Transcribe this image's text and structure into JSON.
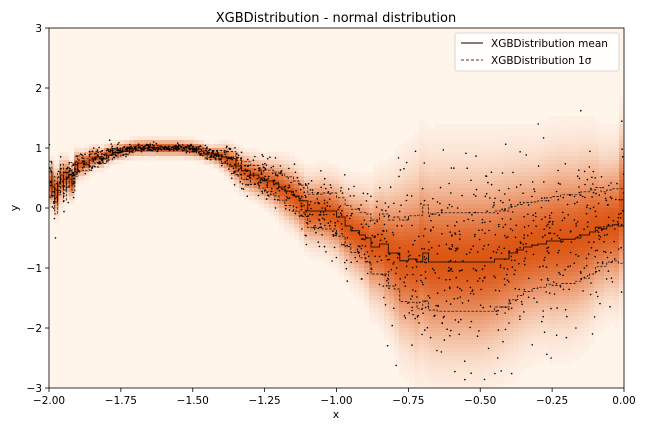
{
  "chart_data": {
    "type": "scatter",
    "title": "XGBDistribution - normal distribution",
    "xlabel": "x",
    "ylabel": "y",
    "xlim": [
      -2.0,
      0.0
    ],
    "ylim": [
      -3,
      3
    ],
    "xticks": [
      -2.0,
      -1.75,
      -1.5,
      -1.25,
      -1.0,
      -0.75,
      -0.5,
      -0.25,
      0.0
    ],
    "xtick_labels": [
      "−2.00",
      "−1.75",
      "−1.50",
      "−1.25",
      "−1.00",
      "−0.75",
      "−0.50",
      "−0.25",
      "0.00"
    ],
    "yticks": [
      -3,
      -2,
      -1,
      0,
      1,
      2,
      3
    ],
    "ytick_labels": [
      "−3",
      "−2",
      "−1",
      "0",
      "1",
      "2",
      "3"
    ],
    "grid": false,
    "legend_position": "top-right",
    "legend": [
      {
        "label": "XGBDistribution mean",
        "style": "solid"
      },
      {
        "label": "XGBDistribution 1σ",
        "style": "dashed"
      }
    ],
    "colormap": "Oranges",
    "background_color": "#fff5eb",
    "peak_color": "#d94801",
    "mean_curve": {
      "x": [
        -2.0,
        -1.99,
        -1.98,
        -1.97,
        -1.96,
        -1.95,
        -1.94,
        -1.93,
        -1.92,
        -1.91,
        -1.9,
        -1.88,
        -1.86,
        -1.84,
        -1.82,
        -1.8,
        -1.78,
        -1.75,
        -1.72,
        -1.7,
        -1.68,
        -1.65,
        -1.62,
        -1.6,
        -1.55,
        -1.5,
        -1.47,
        -1.45,
        -1.42,
        -1.4,
        -1.38,
        -1.35,
        -1.33,
        -1.3,
        -1.27,
        -1.25,
        -1.22,
        -1.2,
        -1.18,
        -1.15,
        -1.13,
        -1.1,
        -1.05,
        -1.0,
        -0.97,
        -0.95,
        -0.92,
        -0.9,
        -0.88,
        -0.85,
        -0.82,
        -0.8,
        -0.78,
        -0.75,
        -0.72,
        -0.7,
        -0.68,
        -0.65,
        -0.6,
        -0.55,
        -0.5,
        -0.45,
        -0.4,
        -0.37,
        -0.35,
        -0.32,
        -0.3,
        -0.27,
        -0.25,
        -0.22,
        -0.2,
        -0.17,
        -0.15,
        -0.12,
        -0.1,
        -0.08,
        -0.06,
        -0.04,
        -0.02,
        0.0
      ],
      "y": [
        0.6,
        0.35,
        0.1,
        0.4,
        0.55,
        0.3,
        0.5,
        0.62,
        0.4,
        0.65,
        0.75,
        0.72,
        0.8,
        0.85,
        0.82,
        0.88,
        0.92,
        0.95,
        0.98,
        1.0,
        1.0,
        1.01,
        1.0,
        1.0,
        1.0,
        0.98,
        0.95,
        0.9,
        0.88,
        0.85,
        0.82,
        0.7,
        0.62,
        0.55,
        0.5,
        0.45,
        0.4,
        0.35,
        0.28,
        0.2,
        0.12,
        -0.05,
        -0.05,
        -0.15,
        -0.3,
        -0.38,
        -0.45,
        -0.5,
        -0.65,
        -0.6,
        -0.75,
        -0.75,
        -0.88,
        -0.85,
        -0.9,
        -0.75,
        -0.9,
        -0.9,
        -0.9,
        -0.9,
        -0.9,
        -0.85,
        -0.75,
        -0.7,
        -0.65,
        -0.62,
        -0.6,
        -0.55,
        -0.55,
        -0.52,
        -0.52,
        -0.5,
        -0.45,
        -0.4,
        -0.32,
        -0.35,
        -0.3,
        -0.28,
        -0.3,
        0.2
      ],
      "sigma": [
        0.18,
        0.18,
        0.2,
        0.18,
        0.18,
        0.18,
        0.16,
        0.14,
        0.14,
        0.12,
        0.12,
        0.1,
        0.1,
        0.09,
        0.08,
        0.08,
        0.07,
        0.06,
        0.05,
        0.04,
        0.04,
        0.03,
        0.03,
        0.03,
        0.03,
        0.04,
        0.05,
        0.06,
        0.08,
        0.1,
        0.12,
        0.14,
        0.15,
        0.16,
        0.17,
        0.18,
        0.2,
        0.22,
        0.24,
        0.25,
        0.26,
        0.28,
        0.3,
        0.32,
        0.34,
        0.36,
        0.38,
        0.4,
        0.45,
        0.5,
        0.55,
        0.6,
        0.68,
        0.72,
        0.78,
        0.8,
        0.8,
        0.82,
        0.82,
        0.82,
        0.82,
        0.8,
        0.78,
        0.76,
        0.74,
        0.72,
        0.72,
        0.72,
        0.74,
        0.74,
        0.74,
        0.72,
        0.72,
        0.7,
        0.66,
        0.62,
        0.6,
        0.6,
        0.62,
        0.7
      ]
    },
    "scatter_points": {
      "count": 1500,
      "x_range": [
        -2.0,
        0.0
      ],
      "description_values": "observations scattered around the mean curve with the shown spread"
    }
  }
}
